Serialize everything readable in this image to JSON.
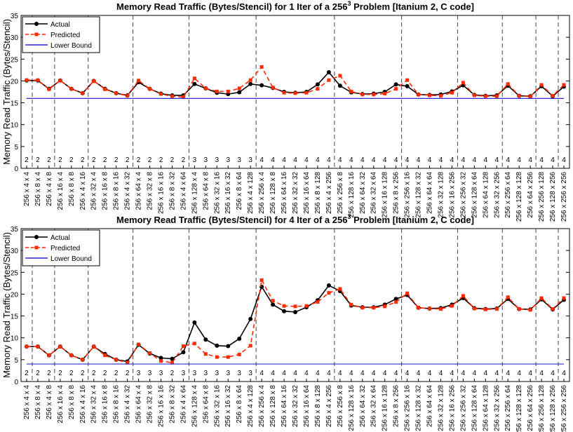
{
  "chart_data": [
    {
      "type": "line",
      "title": "Memory Read Traffic (Bytes/Stencil) for 1 Iter of a 256",
      "title_sup": "3",
      "title_end": " Problem [Itanium 2, C code]",
      "ylabel": "Memory Read Traffic (Bytes/Stencil)",
      "categories": [
        "256 x 4 x 4",
        "256 x 8 x 4",
        "256 x 4 x 8",
        "256 x 16 x 4",
        "256 x 8 x 8",
        "256 x 4 x 16",
        "256 x 32 x 4",
        "256 x 16 x 8",
        "256 x 8 x 16",
        "256 x 4 x 32",
        "256 x 64 x 4",
        "256 x 32 x 8",
        "256 x 16 x 16",
        "256 x 8 x 32",
        "256 x 4 x 64",
        "256 x 128 x 4",
        "256 x 64 x 8",
        "256 x 32 x 16",
        "256 x 16 x 32",
        "256 x 8 x 64",
        "256 x 4 x 128",
        "256 x 256 x 4",
        "256 x 128 x 8",
        "256 x 64 x 16",
        "256 x 32 x 32",
        "256 x 16 x 64",
        "256 x 8 x 128",
        "256 x 4 x 256",
        "256 x 256 x 8",
        "256 x 128 x 16",
        "256 x 64 x 32",
        "256 x 32 x 64",
        "256 x 16 x 128",
        "256 x 8 x 256",
        "256 x 256 x 16",
        "256 x 128 x 32",
        "256 x 64 x 64",
        "256 x 32 x 128",
        "256 x 16 x 256",
        "256 x 256 x 32",
        "256 x 128 x 64",
        "256 x 64 x 128",
        "256 x 32 x 256",
        "256 x 256 x 64",
        "256 x 128 x 128",
        "256 x 64 x 256",
        "256 x 256 x 128",
        "256 x 128 x 256",
        "256 x 256 x 256"
      ],
      "annotations": [
        2,
        2,
        2,
        2,
        2,
        2,
        2,
        2,
        2,
        2,
        2,
        2,
        2,
        2,
        2,
        3,
        3,
        3,
        3,
        3,
        3,
        4,
        4,
        4,
        4,
        4,
        4,
        4,
        4,
        4,
        4,
        4,
        4,
        4,
        4,
        4,
        4,
        4,
        4,
        4,
        4,
        4,
        4,
        4,
        4,
        4,
        4,
        4,
        4
      ],
      "series": [
        {
          "name": "Actual",
          "color": "#000000",
          "marker": "circle",
          "dashed": false,
          "values": [
            20.1,
            20.1,
            18.2,
            20.1,
            18.2,
            17.2,
            20.0,
            18.2,
            17.2,
            16.7,
            19.7,
            18.2,
            17.1,
            16.7,
            16.7,
            19.3,
            18.3,
            17.3,
            17.0,
            17.4,
            19.3,
            19.0,
            18.4,
            17.5,
            17.3,
            17.5,
            19.2,
            22.0,
            18.9,
            17.4,
            17.0,
            17.1,
            17.5,
            19.2,
            18.8,
            16.9,
            16.8,
            16.9,
            17.6,
            19.0,
            16.8,
            16.6,
            16.7,
            18.9,
            16.6,
            16.5,
            18.8,
            16.5,
            18.7
          ]
        },
        {
          "name": "Predicted",
          "color": "#ff2a00",
          "marker": "square",
          "dashed": true,
          "values": [
            20.2,
            20.2,
            18.1,
            20.1,
            18.2,
            17.2,
            20.0,
            18.1,
            17.2,
            16.6,
            20.1,
            18.2,
            17.0,
            16.5,
            16.3,
            20.6,
            18.3,
            17.6,
            17.6,
            18.3,
            20.2,
            23.2,
            18.5,
            17.3,
            17.2,
            17.3,
            18.2,
            20.2,
            21.2,
            17.6,
            16.9,
            16.9,
            17.1,
            18.2,
            20.2,
            16.9,
            16.7,
            16.6,
            17.3,
            19.6,
            16.7,
            16.5,
            16.5,
            19.3,
            16.6,
            16.4,
            19.1,
            16.6,
            19.1
          ]
        },
        {
          "name": "Lower Bound",
          "color": "#2b2bd1",
          "marker": null,
          "dashed": false,
          "values": [
            16,
            16,
            16,
            16,
            16,
            16,
            16,
            16,
            16,
            16,
            16,
            16,
            16,
            16,
            16,
            16,
            16,
            16,
            16,
            16,
            16,
            16,
            16,
            16,
            16,
            16,
            16,
            16,
            16,
            16,
            16,
            16,
            16,
            16,
            16,
            16,
            16,
            16,
            16,
            16,
            16,
            16,
            16,
            16,
            16,
            16,
            16,
            16,
            16
          ]
        }
      ],
      "ylim": [
        0,
        35
      ],
      "yticks": [
        0,
        5,
        10,
        15,
        20,
        25,
        30,
        35
      ],
      "legend": "upper left"
    },
    {
      "type": "line",
      "title": "Memory Read Traffic (Bytes/Stencil) for 4 Iter of a 256",
      "title_sup": "3",
      "title_end": " Problem [Itanium 2, C code]",
      "ylabel": "Memory Read Traffic (Bytes/Stencil)",
      "categories": [
        "256 x 4 x 4",
        "256 x 8 x 4",
        "256 x 4 x 8",
        "256 x 16 x 4",
        "256 x 8 x 8",
        "256 x 4 x 16",
        "256 x 32 x 4",
        "256 x 16 x 8",
        "256 x 8 x 16",
        "256 x 4 x 32",
        "256 x 64 x 4",
        "256 x 32 x 8",
        "256 x 16 x 16",
        "256 x 8 x 32",
        "256 x 4 x 64",
        "256 x 128 x 4",
        "256 x 64 x 8",
        "256 x 32 x 16",
        "256 x 16 x 32",
        "256 x 8 x 64",
        "256 x 4 x 128",
        "256 x 256 x 4",
        "256 x 128 x 8",
        "256 x 64 x 16",
        "256 x 32 x 32",
        "256 x 16 x 64",
        "256 x 8 x 128",
        "256 x 4 x 256",
        "256 x 256 x 8",
        "256 x 128 x 16",
        "256 x 64 x 32",
        "256 x 32 x 64",
        "256 x 16 x 128",
        "256 x 8 x 256",
        "256 x 256 x 16",
        "256 x 128 x 32",
        "256 x 64 x 64",
        "256 x 32 x 128",
        "256 x 16 x 256",
        "256 x 256 x 32",
        "256 x 128 x 64",
        "256 x 64 x 128",
        "256 x 32 x 256",
        "256 x 256 x 64",
        "256 x 128 x 128",
        "256 x 64 x 256",
        "256 x 256 x 128",
        "256 x 128 x 256",
        "256 x 256 x 256"
      ],
      "annotations": [
        2,
        2,
        2,
        2,
        2,
        2,
        2,
        2,
        2,
        2,
        3,
        3,
        3,
        2,
        3,
        3,
        3,
        3,
        3,
        3,
        3,
        4,
        4,
        4,
        4,
        4,
        4,
        4,
        4,
        4,
        4,
        4,
        4,
        4,
        4,
        4,
        4,
        4,
        4,
        4,
        4,
        4,
        4,
        4,
        4,
        4,
        4,
        4,
        4
      ],
      "series": [
        {
          "name": "Actual",
          "color": "#000000",
          "marker": "circle",
          "dashed": false,
          "values": [
            8.0,
            8.0,
            6.0,
            8.0,
            6.0,
            5.0,
            8.0,
            6.3,
            5.0,
            4.6,
            8.4,
            6.4,
            5.4,
            5.2,
            6.7,
            13.5,
            9.6,
            8.2,
            8.1,
            9.8,
            14.3,
            21.7,
            17.6,
            16.1,
            15.9,
            17.0,
            18.6,
            22.0,
            20.7,
            17.4,
            17.0,
            17.0,
            17.6,
            18.9,
            19.8,
            16.9,
            16.7,
            16.8,
            17.6,
            19.1,
            16.8,
            16.6,
            16.7,
            18.9,
            16.6,
            16.5,
            18.8,
            16.5,
            18.7
          ]
        },
        {
          "name": "Predicted",
          "color": "#ff2a00",
          "marker": "square",
          "dashed": true,
          "values": [
            8.0,
            8.0,
            6.0,
            8.0,
            6.0,
            5.0,
            8.0,
            6.0,
            5.0,
            4.3,
            8.5,
            6.5,
            4.7,
            4.3,
            8.1,
            8.7,
            6.3,
            5.6,
            5.6,
            6.2,
            8.2,
            23.2,
            18.5,
            17.3,
            17.2,
            17.3,
            18.2,
            20.3,
            21.2,
            17.6,
            16.9,
            16.9,
            17.2,
            18.2,
            20.2,
            16.9,
            16.7,
            16.6,
            17.3,
            19.6,
            16.7,
            16.5,
            16.6,
            19.3,
            16.6,
            16.4,
            19.1,
            16.6,
            19.1
          ]
        },
        {
          "name": "Lower Bound",
          "color": "#2b2bd1",
          "marker": null,
          "dashed": false,
          "values": [
            4,
            4,
            4,
            4,
            4,
            4,
            4,
            4,
            4,
            4,
            4,
            4,
            4,
            4,
            4,
            4,
            4,
            4,
            4,
            4,
            4,
            4,
            4,
            4,
            4,
            4,
            4,
            4,
            4,
            4,
            4,
            4,
            4,
            4,
            4,
            4,
            4,
            4,
            4,
            4,
            4,
            4,
            4,
            4,
            4,
            4,
            4,
            4,
            4
          ]
        }
      ],
      "ylim": [
        0,
        35
      ],
      "yticks": [
        0,
        5,
        10,
        15,
        20,
        25,
        30,
        35
      ],
      "legend": "upper left"
    }
  ]
}
